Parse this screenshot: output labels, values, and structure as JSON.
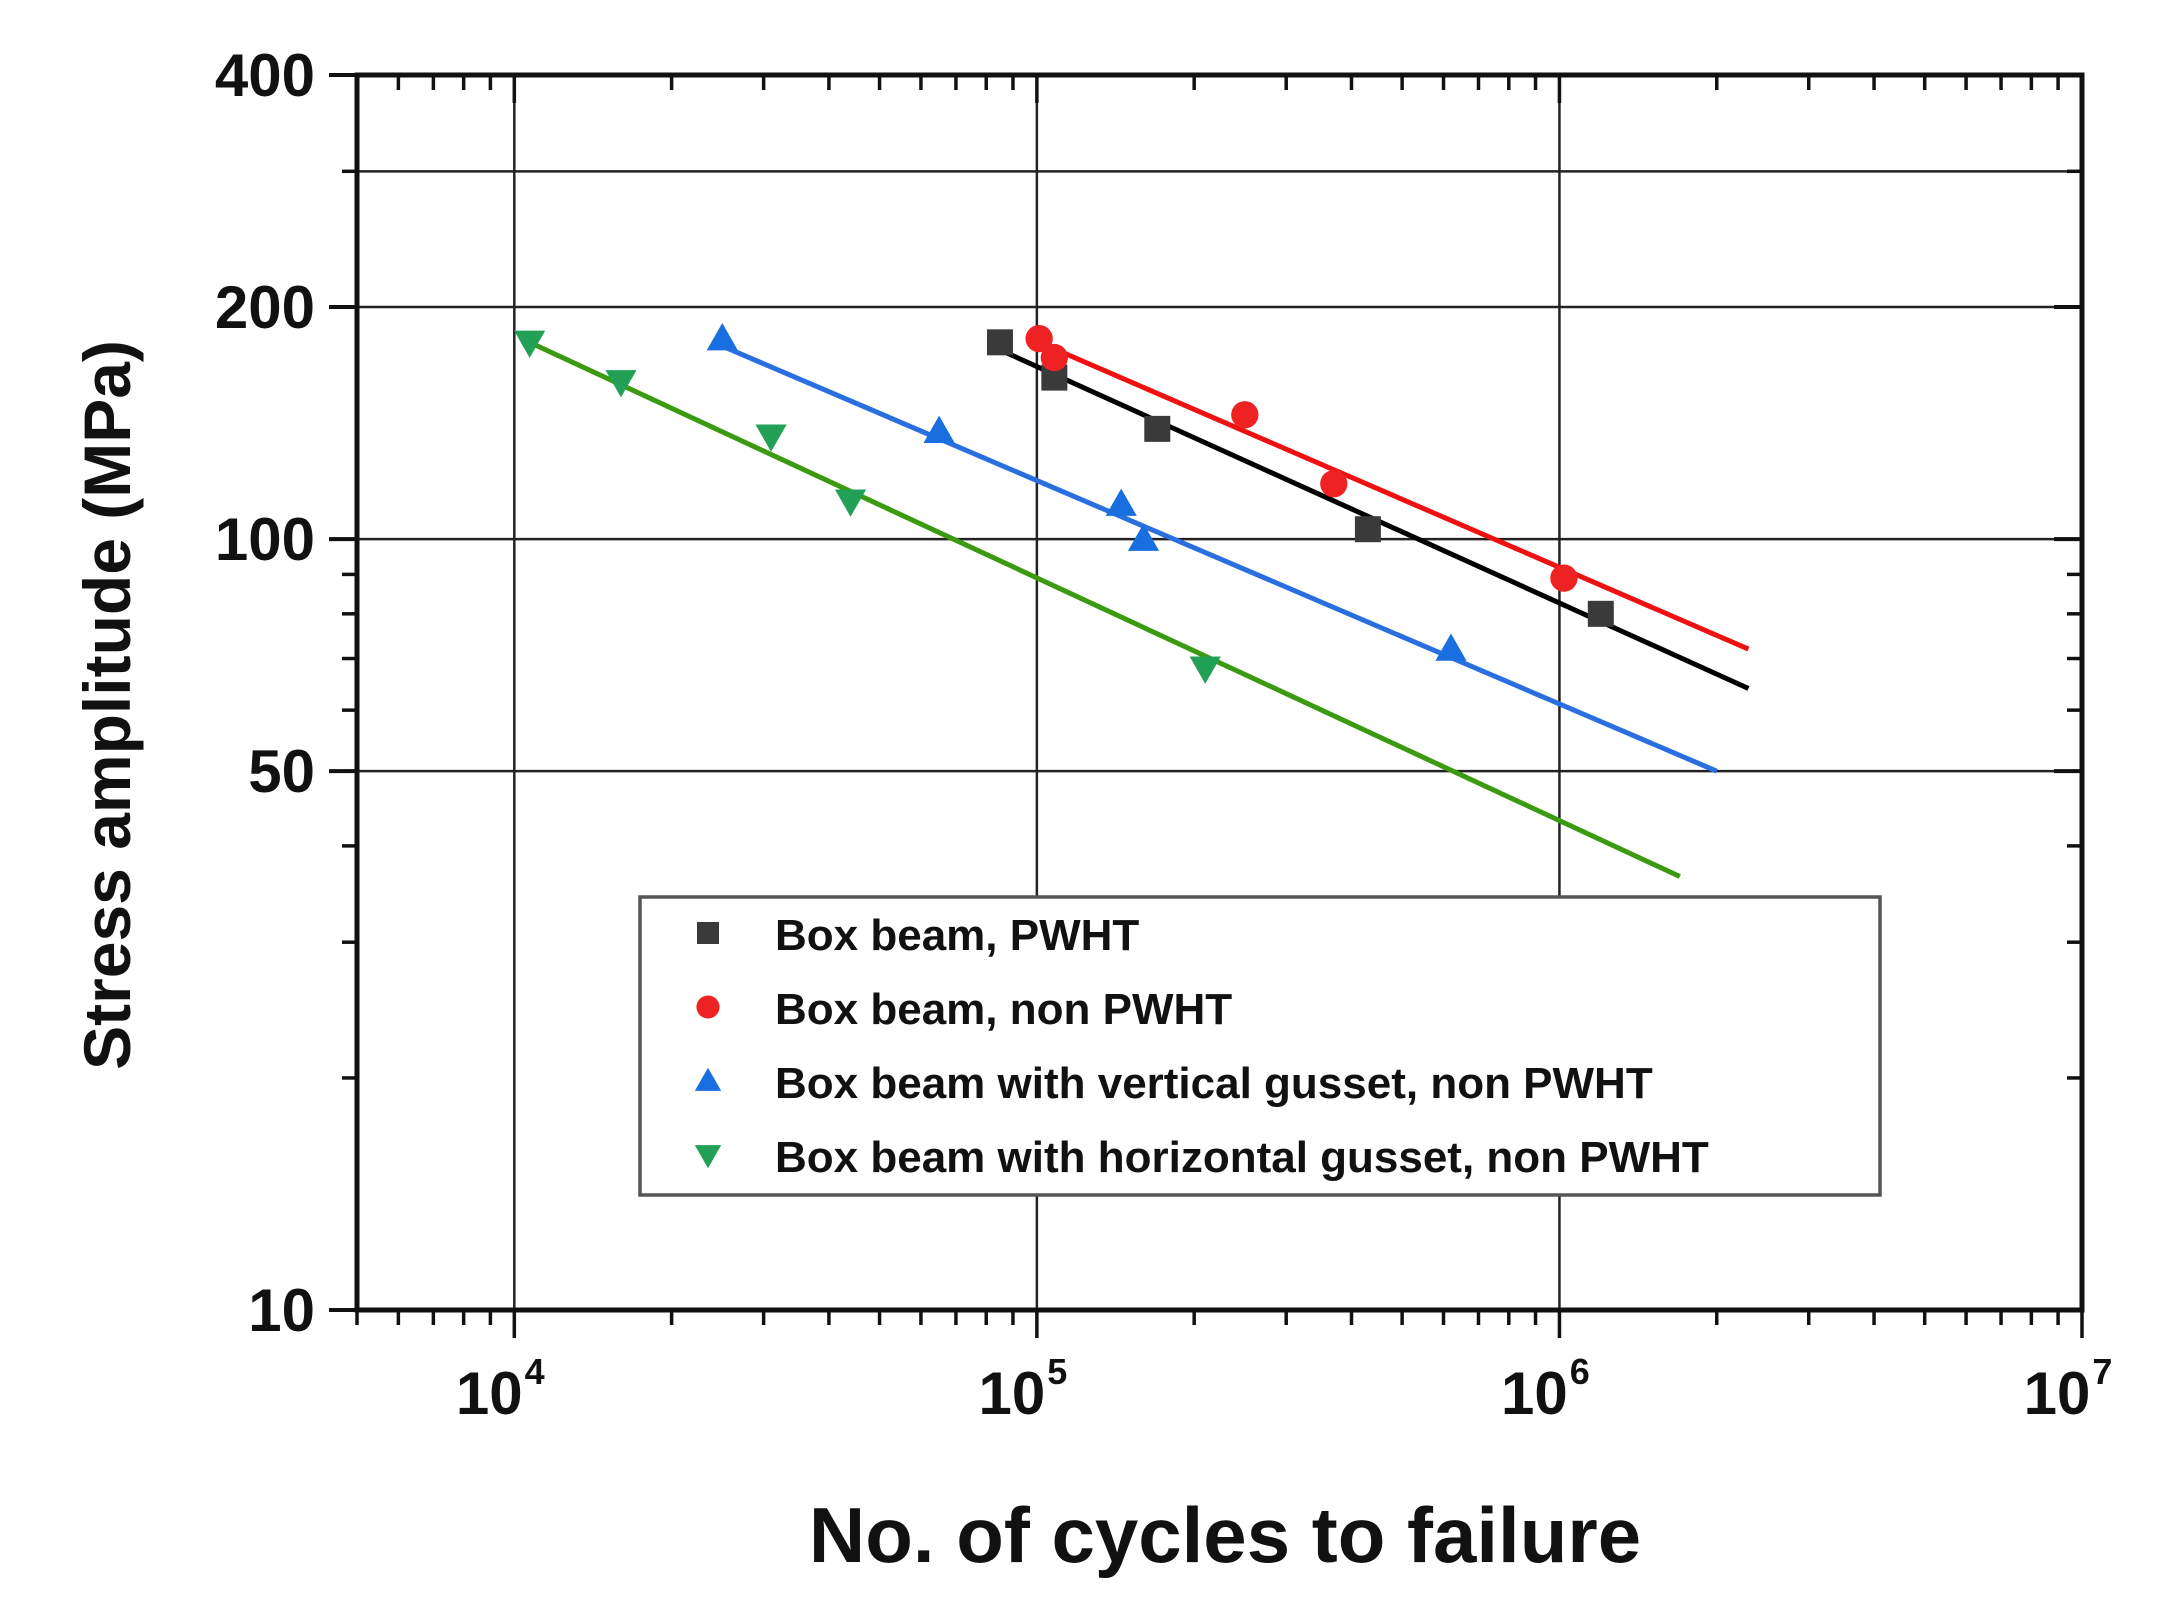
{
  "chart_data": {
    "type": "scatter",
    "title": "",
    "xlabel": "No. of cycles to failure",
    "ylabel": "Stress amplitude (MPa)",
    "xscale": "log",
    "yscale": "log",
    "xlim": [
      5000,
      10000000
    ],
    "ylim": [
      10,
      400
    ],
    "grid": true,
    "legend_position": "lower-right",
    "x_ticks": [
      {
        "value": 10000,
        "base": "10",
        "exp": "4"
      },
      {
        "value": 100000,
        "base": "10",
        "exp": "5"
      },
      {
        "value": 1000000,
        "base": "10",
        "exp": "6"
      },
      {
        "value": 10000000,
        "base": "10",
        "exp": "7"
      }
    ],
    "y_ticks": [
      {
        "value": 400,
        "label": "400"
      },
      {
        "value": 200,
        "label": "200"
      },
      {
        "value": 100,
        "label": "100"
      },
      {
        "value": 50,
        "label": "50"
      },
      {
        "value": 10,
        "label": "10"
      }
    ],
    "y_grid_values": [
      400,
      300,
      200,
      100,
      50,
      10
    ],
    "x_grid_values": [
      10000,
      100000,
      1000000
    ],
    "series": [
      {
        "name": "Box beam, PWHT",
        "marker": "square",
        "color": "#3a3a3a",
        "line_color": "#000000",
        "points": [
          {
            "x": 85000,
            "y": 180
          },
          {
            "x": 108000,
            "y": 162
          },
          {
            "x": 170000,
            "y": 139
          },
          {
            "x": 430000,
            "y": 103
          },
          {
            "x": 1200000,
            "y": 80
          }
        ],
        "fit": {
          "x": [
            85000,
            2300000
          ],
          "y": [
            176,
            64
          ]
        }
      },
      {
        "name": "Box beam, non PWHT",
        "marker": "circle",
        "color": "#ee2222",
        "line_color": "#ee1111",
        "points": [
          {
            "x": 101000,
            "y": 182
          },
          {
            "x": 108000,
            "y": 172
          },
          {
            "x": 250000,
            "y": 145
          },
          {
            "x": 370000,
            "y": 118
          },
          {
            "x": 1020000,
            "y": 89
          }
        ],
        "fit": {
          "x": [
            101000,
            2300000
          ],
          "y": [
            180,
            72
          ]
        }
      },
      {
        "name": "Box beam with vertical gusset, non PWHT",
        "marker": "triangle-up",
        "color": "#1a6fe0",
        "line_color": "#2a6fe0",
        "points": [
          {
            "x": 25000,
            "y": 182
          },
          {
            "x": 65000,
            "y": 138
          },
          {
            "x": 145000,
            "y": 111
          },
          {
            "x": 160000,
            "y": 100
          },
          {
            "x": 620000,
            "y": 72
          }
        ],
        "fit": {
          "x": [
            25000,
            2000000
          ],
          "y": [
            178,
            50
          ]
        }
      },
      {
        "name": "Box beam with horizontal gusset, non PWHT",
        "marker": "triangle-down",
        "color": "#22a055",
        "line_color": "#3a9a10",
        "points": [
          {
            "x": 10700,
            "y": 180
          },
          {
            "x": 16000,
            "y": 160
          },
          {
            "x": 31000,
            "y": 136
          },
          {
            "x": 44000,
            "y": 112
          },
          {
            "x": 210000,
            "y": 68
          }
        ],
        "fit": {
          "x": [
            10700,
            1700000
          ],
          "y": [
            180,
            36.5
          ]
        }
      }
    ]
  }
}
